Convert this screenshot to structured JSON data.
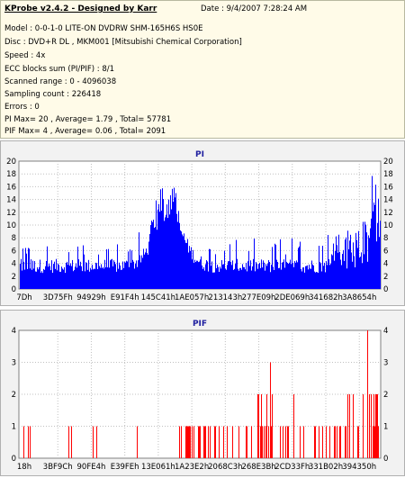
{
  "report": {
    "title": "KProbe v2.4.2 - Designed by Karr",
    "date": "Date : 9/4/2007 7:28:24 AM",
    "lines": [
      "Model : 0-0-1-0 LITE-ON DVDRW SHM-165H6S HS0E",
      "Disc : DVD+R DL , MKM001 [Mitsubishi Chemical Corporation]",
      "Speed : 4x",
      "ECC blocks sum (PI/PIF) : 8/1",
      "Scanned range : 0 - 4096038",
      "Sampling count : 226418",
      "Errors : 0",
      "PI Max= 20 , Average= 1.79 , Total= 57781",
      "PIF Max= 4 , Average= 0.06 , Total= 2091"
    ]
  },
  "chart_data": [
    {
      "type": "bar",
      "title": "PI",
      "ylim": [
        0,
        20
      ],
      "y_ticks": [
        0,
        2,
        4,
        6,
        8,
        10,
        12,
        14,
        16,
        18,
        20
      ],
      "x_tick_labels": [
        "7Dh",
        "3D75Fh",
        "94929h",
        "E91F4h",
        "145C41h",
        "1AE057h",
        "213143h",
        "277E09h",
        "2DE069h",
        "341682h",
        "3A8654h"
      ],
      "series_color": "#0000ff",
      "baseline_level": 4,
      "peak_region": "1AE057h",
      "max": 20,
      "average": 1.79,
      "total": 57781
    },
    {
      "type": "bar",
      "title": "PIF",
      "ylim": [
        0,
        4
      ],
      "y_ticks": [
        0,
        1,
        2,
        3,
        4
      ],
      "x_tick_labels": [
        "18h",
        "3BF9Ch",
        "90FE4h",
        "E39FEh",
        "13E061h",
        "1A23E2h",
        "2068C3h",
        "268E3Bh",
        "2CD33Fh",
        "331B02h",
        "394350h"
      ],
      "series_color": "#ff0000",
      "max": 4,
      "average": 0.06,
      "total": 2091
    }
  ]
}
